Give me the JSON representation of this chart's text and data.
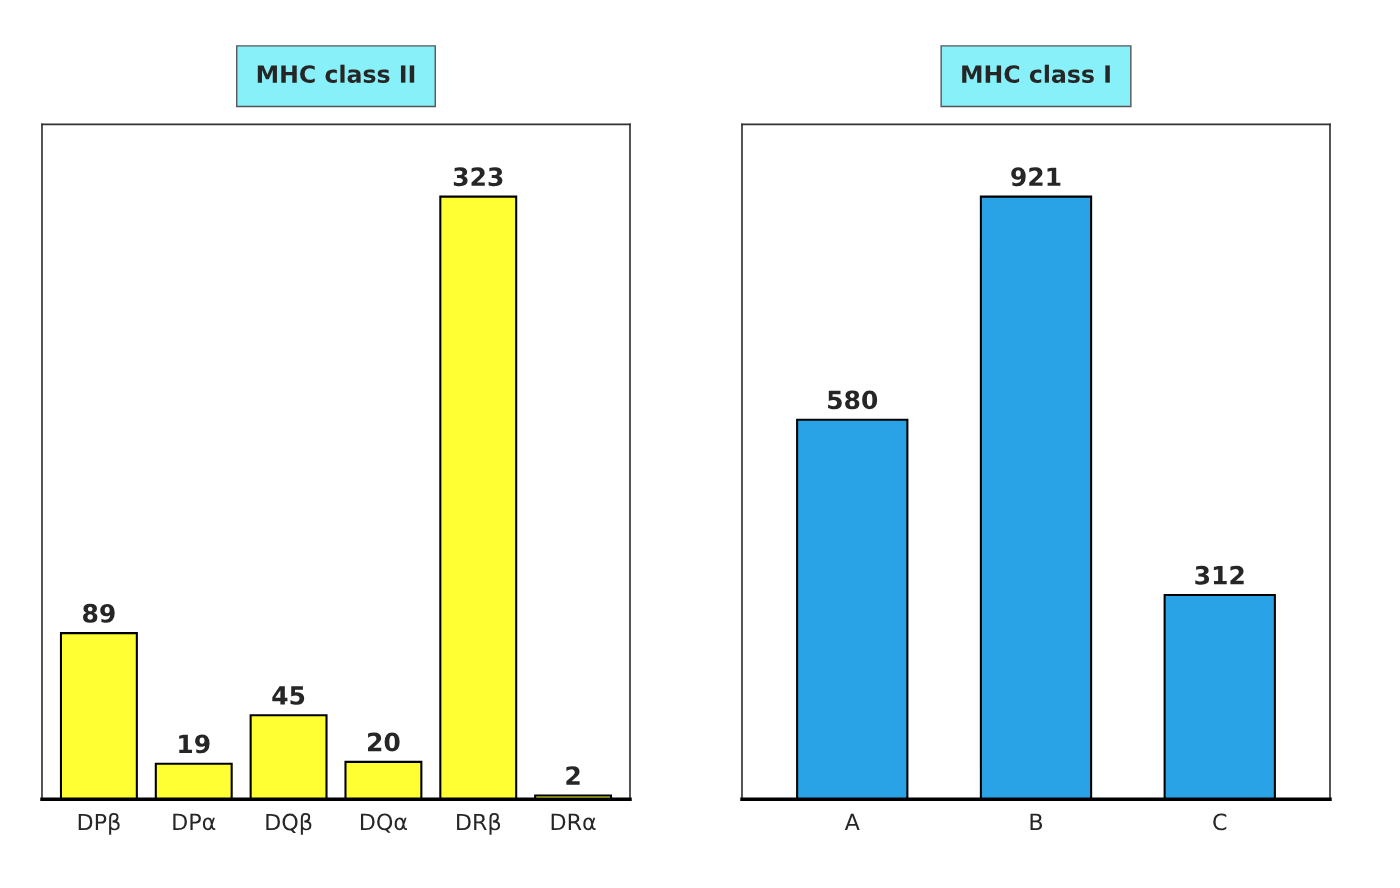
{
  "chart_data": [
    {
      "type": "bar",
      "title": "MHC class II",
      "categories": [
        "DPβ",
        "DPα",
        "DQβ",
        "DQα",
        "DRβ",
        "DRα"
      ],
      "values": [
        89,
        19,
        45,
        20,
        323,
        2
      ],
      "color": "#ffff33",
      "data_labels": true,
      "grid": false,
      "legend": false,
      "tick_labels": "x"
    },
    {
      "type": "bar",
      "title": "MHC class I",
      "categories": [
        "A",
        "B",
        "C"
      ],
      "values": [
        580,
        921,
        312
      ],
      "color": "#29a3e6",
      "data_labels": true,
      "grid": false,
      "legend": false,
      "tick_labels": "x"
    }
  ]
}
